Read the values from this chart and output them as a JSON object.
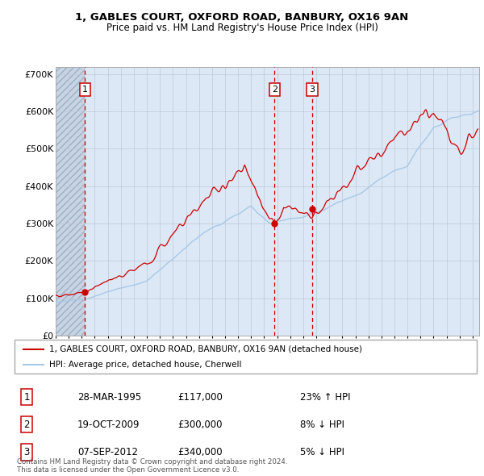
{
  "title1": "1, GABLES COURT, OXFORD ROAD, BANBURY, OX16 9AN",
  "title2": "Price paid vs. HM Land Registry's House Price Index (HPI)",
  "ylabel_ticks": [
    "£0",
    "£100K",
    "£200K",
    "£300K",
    "£400K",
    "£500K",
    "£600K",
    "£700K"
  ],
  "ytick_vals": [
    0,
    100000,
    200000,
    300000,
    400000,
    500000,
    600000,
    700000
  ],
  "ylim": [
    0,
    720000
  ],
  "xlim_start": 1993.0,
  "xlim_end": 2025.5,
  "sale_dates": [
    1995.24,
    2009.8,
    2012.69
  ],
  "sale_prices": [
    117000,
    300000,
    340000
  ],
  "sale_labels": [
    "1",
    "2",
    "3"
  ],
  "legend_line1": "1, GABLES COURT, OXFORD ROAD, BANBURY, OX16 9AN (detached house)",
  "legend_line2": "HPI: Average price, detached house, Cherwell",
  "table_rows": [
    [
      "1",
      "28-MAR-1995",
      "£117,000",
      "23% ↑ HPI"
    ],
    [
      "2",
      "19-OCT-2009",
      "£300,000",
      "8% ↓ HPI"
    ],
    [
      "3",
      "07-SEP-2012",
      "£340,000",
      "5% ↓ HPI"
    ]
  ],
  "footer": "Contains HM Land Registry data © Crown copyright and database right 2024.\nThis data is licensed under the Open Government Licence v3.0.",
  "hpi_color": "#a8c8e8",
  "price_color": "#cc0000",
  "sale_dot_color": "#cc0000",
  "vline_color": "#cc0000",
  "grid_color": "#c0c8d8",
  "bg_plot_color": "#dce8f5",
  "bg_hatch_color": "#c8d4e4",
  "hatch_end_year": 1995.24,
  "label_box_color": "#cc0000"
}
